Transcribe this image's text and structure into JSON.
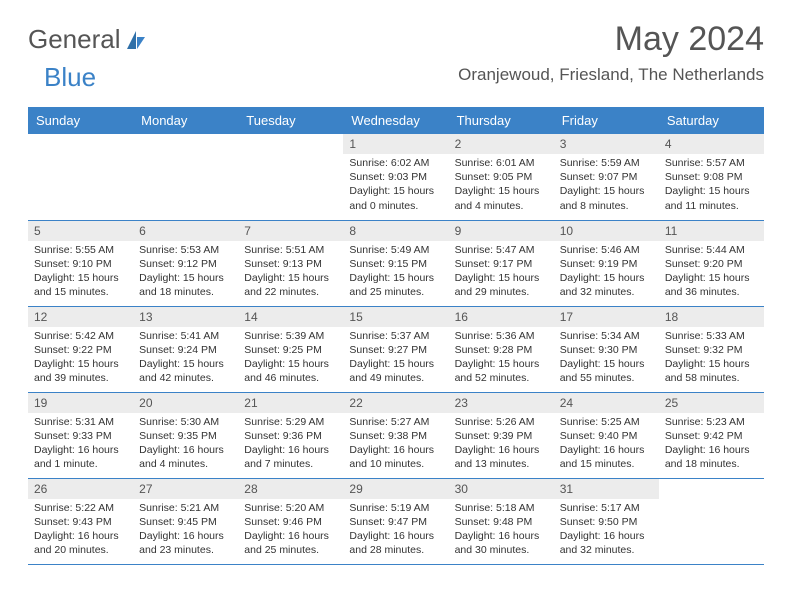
{
  "logo": {
    "general": "General",
    "blue": "Blue"
  },
  "title": "May 2024",
  "location": "Oranjewoud, Friesland, The Netherlands",
  "day_headers": [
    "Sunday",
    "Monday",
    "Tuesday",
    "Wednesday",
    "Thursday",
    "Friday",
    "Saturday"
  ],
  "colors": {
    "header_bg": "#3b82c7",
    "header_text": "#ffffff",
    "daynum_bg": "#ececec",
    "body_text": "#333333",
    "title_text": "#555555",
    "border": "#3b82c7"
  },
  "typography": {
    "title_fontsize": 34,
    "location_fontsize": 17,
    "header_fontsize": 13,
    "daynum_fontsize": 12,
    "body_fontsize": 10.5,
    "font_family": "Arial"
  },
  "grid": {
    "columns": 7,
    "rows": 5,
    "leading_blanks": 3
  },
  "days": [
    {
      "n": 1,
      "sunrise": "6:02 AM",
      "sunset": "9:03 PM",
      "daylight": "15 hours and 0 minutes."
    },
    {
      "n": 2,
      "sunrise": "6:01 AM",
      "sunset": "9:05 PM",
      "daylight": "15 hours and 4 minutes."
    },
    {
      "n": 3,
      "sunrise": "5:59 AM",
      "sunset": "9:07 PM",
      "daylight": "15 hours and 8 minutes."
    },
    {
      "n": 4,
      "sunrise": "5:57 AM",
      "sunset": "9:08 PM",
      "daylight": "15 hours and 11 minutes."
    },
    {
      "n": 5,
      "sunrise": "5:55 AM",
      "sunset": "9:10 PM",
      "daylight": "15 hours and 15 minutes."
    },
    {
      "n": 6,
      "sunrise": "5:53 AM",
      "sunset": "9:12 PM",
      "daylight": "15 hours and 18 minutes."
    },
    {
      "n": 7,
      "sunrise": "5:51 AM",
      "sunset": "9:13 PM",
      "daylight": "15 hours and 22 minutes."
    },
    {
      "n": 8,
      "sunrise": "5:49 AM",
      "sunset": "9:15 PM",
      "daylight": "15 hours and 25 minutes."
    },
    {
      "n": 9,
      "sunrise": "5:47 AM",
      "sunset": "9:17 PM",
      "daylight": "15 hours and 29 minutes."
    },
    {
      "n": 10,
      "sunrise": "5:46 AM",
      "sunset": "9:19 PM",
      "daylight": "15 hours and 32 minutes."
    },
    {
      "n": 11,
      "sunrise": "5:44 AM",
      "sunset": "9:20 PM",
      "daylight": "15 hours and 36 minutes."
    },
    {
      "n": 12,
      "sunrise": "5:42 AM",
      "sunset": "9:22 PM",
      "daylight": "15 hours and 39 minutes."
    },
    {
      "n": 13,
      "sunrise": "5:41 AM",
      "sunset": "9:24 PM",
      "daylight": "15 hours and 42 minutes."
    },
    {
      "n": 14,
      "sunrise": "5:39 AM",
      "sunset": "9:25 PM",
      "daylight": "15 hours and 46 minutes."
    },
    {
      "n": 15,
      "sunrise": "5:37 AM",
      "sunset": "9:27 PM",
      "daylight": "15 hours and 49 minutes."
    },
    {
      "n": 16,
      "sunrise": "5:36 AM",
      "sunset": "9:28 PM",
      "daylight": "15 hours and 52 minutes."
    },
    {
      "n": 17,
      "sunrise": "5:34 AM",
      "sunset": "9:30 PM",
      "daylight": "15 hours and 55 minutes."
    },
    {
      "n": 18,
      "sunrise": "5:33 AM",
      "sunset": "9:32 PM",
      "daylight": "15 hours and 58 minutes."
    },
    {
      "n": 19,
      "sunrise": "5:31 AM",
      "sunset": "9:33 PM",
      "daylight": "16 hours and 1 minute."
    },
    {
      "n": 20,
      "sunrise": "5:30 AM",
      "sunset": "9:35 PM",
      "daylight": "16 hours and 4 minutes."
    },
    {
      "n": 21,
      "sunrise": "5:29 AM",
      "sunset": "9:36 PM",
      "daylight": "16 hours and 7 minutes."
    },
    {
      "n": 22,
      "sunrise": "5:27 AM",
      "sunset": "9:38 PM",
      "daylight": "16 hours and 10 minutes."
    },
    {
      "n": 23,
      "sunrise": "5:26 AM",
      "sunset": "9:39 PM",
      "daylight": "16 hours and 13 minutes."
    },
    {
      "n": 24,
      "sunrise": "5:25 AM",
      "sunset": "9:40 PM",
      "daylight": "16 hours and 15 minutes."
    },
    {
      "n": 25,
      "sunrise": "5:23 AM",
      "sunset": "9:42 PM",
      "daylight": "16 hours and 18 minutes."
    },
    {
      "n": 26,
      "sunrise": "5:22 AM",
      "sunset": "9:43 PM",
      "daylight": "16 hours and 20 minutes."
    },
    {
      "n": 27,
      "sunrise": "5:21 AM",
      "sunset": "9:45 PM",
      "daylight": "16 hours and 23 minutes."
    },
    {
      "n": 28,
      "sunrise": "5:20 AM",
      "sunset": "9:46 PM",
      "daylight": "16 hours and 25 minutes."
    },
    {
      "n": 29,
      "sunrise": "5:19 AM",
      "sunset": "9:47 PM",
      "daylight": "16 hours and 28 minutes."
    },
    {
      "n": 30,
      "sunrise": "5:18 AM",
      "sunset": "9:48 PM",
      "daylight": "16 hours and 30 minutes."
    },
    {
      "n": 31,
      "sunrise": "5:17 AM",
      "sunset": "9:50 PM",
      "daylight": "16 hours and 32 minutes."
    }
  ],
  "labels": {
    "sunrise": "Sunrise:",
    "sunset": "Sunset:",
    "daylight": "Daylight:"
  }
}
